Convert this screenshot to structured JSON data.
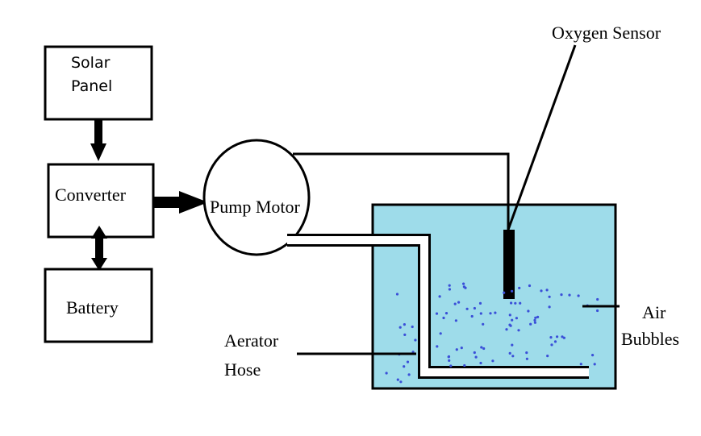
{
  "labels": {
    "solar_panel_line1": "Solar",
    "solar_panel_line2": "Panel",
    "converter": "Converter",
    "battery": "Battery",
    "pump_motor": "Pump Motor",
    "oxygen_sensor": "Oxygen Sensor",
    "air_bubbles_line1": "Air",
    "air_bubbles_line2": "Bubbles",
    "aerator_hose_line1": "Aerator",
    "aerator_hose_line2": "Hose"
  },
  "colors": {
    "water": "#9edcea",
    "bubble": "#3a4fd8",
    "stroke": "#000000"
  }
}
